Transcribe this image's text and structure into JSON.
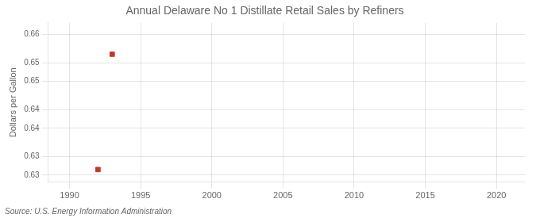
{
  "chart_data": {
    "type": "scatter",
    "title": "Annual Delaware No 1 Distillate Retail Sales by Refiners",
    "ylabel": "Dollars per Gallon",
    "source": "Source: U.S. Energy Information Administration",
    "x": [
      1993,
      1992
    ],
    "values": [
      0.6558,
      0.6312
    ],
    "color": "#c0392b",
    "marker": "square",
    "xlim": [
      1988.5,
      2022
    ],
    "ylim": [
      0.6285,
      0.6625
    ],
    "xticks": [
      1990,
      1995,
      2000,
      2005,
      2010,
      2015,
      2020
    ],
    "yticks": [
      0.63,
      {
        "value": 0.634,
        "label": "0.63"
      },
      0.64,
      {
        "value": 0.644,
        "label": "0.64"
      },
      0.65,
      {
        "value": 0.654,
        "label": "0.65"
      },
      0.66
    ],
    "grid": true
  }
}
